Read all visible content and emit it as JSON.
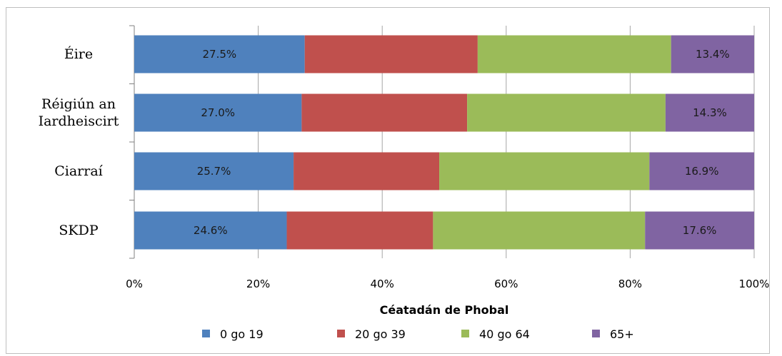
{
  "chart_data": {
    "type": "bar",
    "orientation": "horizontal",
    "stacked": true,
    "percent_stacked": true,
    "categories": [
      [
        "Éire"
      ],
      [
        "Réigiún an",
        "Iardheiscirt"
      ],
      [
        "Ciarraí"
      ],
      [
        "SKDP"
      ]
    ],
    "series": [
      {
        "name": "0 go 19",
        "color": "#4f81bd",
        "values": [
          27.5,
          27.0,
          25.7,
          24.6
        ],
        "labels": [
          "27.5%",
          "27.0%",
          "25.7%",
          "24.6%"
        ]
      },
      {
        "name": "20 go 39",
        "color": "#c0504d",
        "values": [
          27.9,
          26.7,
          23.5,
          23.6
        ],
        "labels": null
      },
      {
        "name": "40 go 64",
        "color": "#9bbb59",
        "values": [
          31.2,
          32.0,
          33.9,
          34.2
        ],
        "labels": null
      },
      {
        "name": "65+",
        "color": "#8064a2",
        "values": [
          13.4,
          14.3,
          16.9,
          17.6
        ],
        "labels": [
          "13.4%",
          "14.3%",
          "16.9%",
          "17.6%"
        ]
      }
    ],
    "xlim": [
      0,
      100
    ],
    "xticks": [
      0,
      20,
      40,
      60,
      80,
      100
    ],
    "xtick_labels": [
      "0%",
      "20%",
      "40%",
      "60%",
      "80%",
      "100%"
    ],
    "xlabel": "Céatadán de Phobal",
    "ylabel": "",
    "title": "",
    "grid": "vertical",
    "legend_position": "bottom"
  }
}
